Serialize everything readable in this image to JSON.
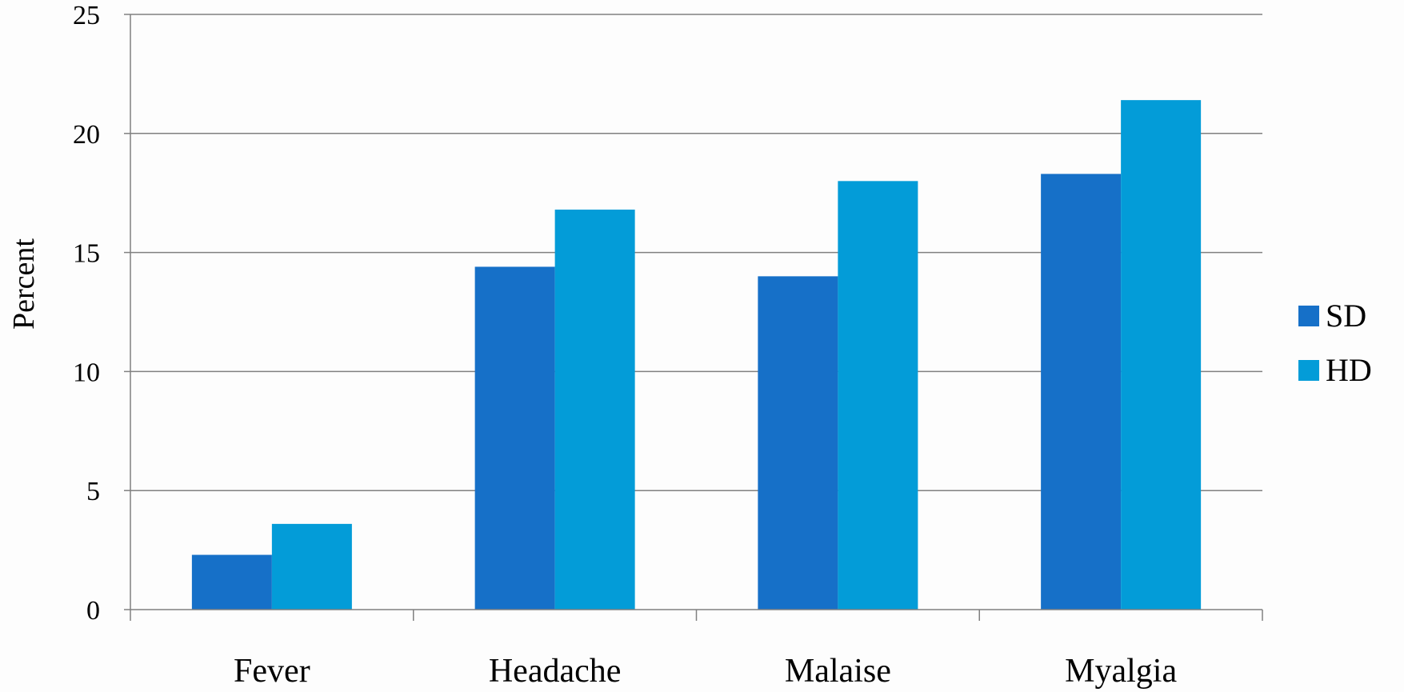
{
  "chart_data": {
    "type": "bar",
    "title": "",
    "xlabel": "",
    "ylabel": "Percent",
    "categories": [
      "Fever",
      "Headache",
      "Malaise",
      "Myalgia"
    ],
    "series": [
      {
        "name": "SD",
        "color": "#1670c8",
        "values": [
          2.3,
          14.4,
          14.0,
          18.3
        ]
      },
      {
        "name": "HD",
        "color": "#039cd8",
        "values": [
          3.6,
          16.8,
          18.0,
          21.4
        ]
      }
    ],
    "ylim": [
      0,
      25
    ],
    "yticks": [
      0,
      5,
      10,
      15,
      20,
      25
    ],
    "grid": true,
    "legend_position": "right"
  }
}
